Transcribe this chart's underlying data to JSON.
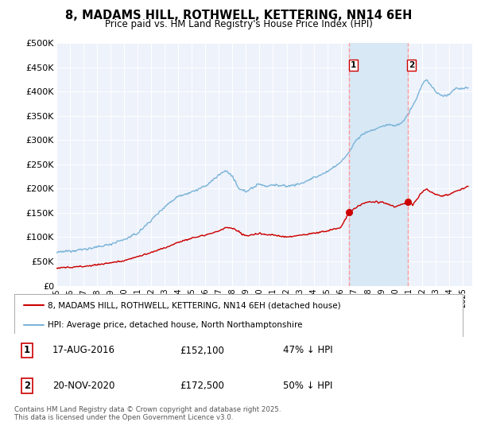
{
  "title": "8, MADAMS HILL, ROTHWELL, KETTERING, NN14 6EH",
  "subtitle": "Price paid vs. HM Land Registry's House Price Index (HPI)",
  "ylabel_vals": [
    "£0",
    "£50K",
    "£100K",
    "£150K",
    "£200K",
    "£250K",
    "£300K",
    "£350K",
    "£400K",
    "£450K",
    "£500K"
  ],
  "ylim": [
    0,
    500000
  ],
  "xlim_start": 1995.0,
  "xlim_end": 2025.7,
  "background_color": "#ffffff",
  "plot_bg_color": "#eef2fb",
  "grid_color": "#ffffff",
  "hpi_color": "#7ab4d8",
  "price_color": "#cc0000",
  "vline_color": "#ff9999",
  "span_color": "#d8e8f5",
  "marker1_date": 2016.63,
  "marker2_date": 2020.92,
  "marker1_price": 152100,
  "marker2_price": 172500,
  "marker1_label": "17-AUG-2016",
  "marker2_label": "20-NOV-2020",
  "marker1_note": "47% ↓ HPI",
  "marker2_note": "50% ↓ HPI",
  "legend_line1": "8, MADAMS HILL, ROTHWELL, KETTERING, NN14 6EH (detached house)",
  "legend_line2": "HPI: Average price, detached house, North Northamptonshire",
  "footer": "Contains HM Land Registry data © Crown copyright and database right 2025.\nThis data is licensed under the Open Government Licence v3.0.",
  "xtick_years": [
    1995,
    1996,
    1997,
    1998,
    1999,
    2000,
    2001,
    2002,
    2003,
    2004,
    2005,
    2006,
    2007,
    2008,
    2009,
    2010,
    2011,
    2012,
    2013,
    2014,
    2015,
    2016,
    2017,
    2018,
    2019,
    2020,
    2021,
    2022,
    2023,
    2024,
    2025
  ],
  "hpi_anchors": [
    [
      1995.0,
      68000
    ],
    [
      1995.5,
      70000
    ],
    [
      1996.0,
      72000
    ],
    [
      1997.0,
      75000
    ],
    [
      1998.0,
      79000
    ],
    [
      1999.0,
      86000
    ],
    [
      2000.0,
      95000
    ],
    [
      2001.0,
      108000
    ],
    [
      2002.0,
      135000
    ],
    [
      2003.0,
      163000
    ],
    [
      2004.0,
      185000
    ],
    [
      2005.0,
      193000
    ],
    [
      2006.0,
      205000
    ],
    [
      2007.0,
      228000
    ],
    [
      2007.5,
      238000
    ],
    [
      2008.0,
      225000
    ],
    [
      2008.5,
      198000
    ],
    [
      2009.0,
      195000
    ],
    [
      2009.5,
      202000
    ],
    [
      2010.0,
      210000
    ],
    [
      2010.5,
      205000
    ],
    [
      2011.0,
      208000
    ],
    [
      2012.0,
      205000
    ],
    [
      2013.0,
      210000
    ],
    [
      2014.0,
      222000
    ],
    [
      2015.0,
      235000
    ],
    [
      2016.0,
      255000
    ],
    [
      2016.5,
      270000
    ],
    [
      2017.0,
      295000
    ],
    [
      2017.5,
      310000
    ],
    [
      2018.0,
      318000
    ],
    [
      2018.5,
      322000
    ],
    [
      2019.0,
      328000
    ],
    [
      2019.5,
      332000
    ],
    [
      2020.0,
      330000
    ],
    [
      2020.5,
      335000
    ],
    [
      2021.0,
      355000
    ],
    [
      2021.5,
      380000
    ],
    [
      2022.0,
      415000
    ],
    [
      2022.3,
      425000
    ],
    [
      2022.5,
      418000
    ],
    [
      2023.0,
      400000
    ],
    [
      2023.5,
      390000
    ],
    [
      2024.0,
      395000
    ],
    [
      2024.5,
      408000
    ],
    [
      2025.0,
      405000
    ],
    [
      2025.4,
      410000
    ]
  ],
  "price_anchors": [
    [
      1995.0,
      36000
    ],
    [
      1996.0,
      38000
    ],
    [
      1997.0,
      40000
    ],
    [
      1998.0,
      43000
    ],
    [
      1999.0,
      47000
    ],
    [
      2000.0,
      52000
    ],
    [
      2001.0,
      60000
    ],
    [
      2002.0,
      68000
    ],
    [
      2003.0,
      78000
    ],
    [
      2004.0,
      90000
    ],
    [
      2005.0,
      98000
    ],
    [
      2006.0,
      105000
    ],
    [
      2007.0,
      112000
    ],
    [
      2007.5,
      120000
    ],
    [
      2008.0,
      118000
    ],
    [
      2008.5,
      110000
    ],
    [
      2009.0,
      103000
    ],
    [
      2009.5,
      105000
    ],
    [
      2010.0,
      108000
    ],
    [
      2010.5,
      105000
    ],
    [
      2011.0,
      105000
    ],
    [
      2012.0,
      100000
    ],
    [
      2013.0,
      104000
    ],
    [
      2014.0,
      108000
    ],
    [
      2015.0,
      113000
    ],
    [
      2016.0,
      120000
    ],
    [
      2016.63,
      152100
    ],
    [
      2017.0,
      158000
    ],
    [
      2017.5,
      168000
    ],
    [
      2018.0,
      172000
    ],
    [
      2018.5,
      173000
    ],
    [
      2019.0,
      172000
    ],
    [
      2019.5,
      168000
    ],
    [
      2020.0,
      162000
    ],
    [
      2020.92,
      172500
    ],
    [
      2021.0,
      178000
    ],
    [
      2021.3,
      165000
    ],
    [
      2021.5,
      175000
    ],
    [
      2022.0,
      192000
    ],
    [
      2022.3,
      200000
    ],
    [
      2022.5,
      196000
    ],
    [
      2023.0,
      188000
    ],
    [
      2023.5,
      185000
    ],
    [
      2024.0,
      188000
    ],
    [
      2024.5,
      195000
    ],
    [
      2025.0,
      200000
    ],
    [
      2025.4,
      205000
    ]
  ]
}
